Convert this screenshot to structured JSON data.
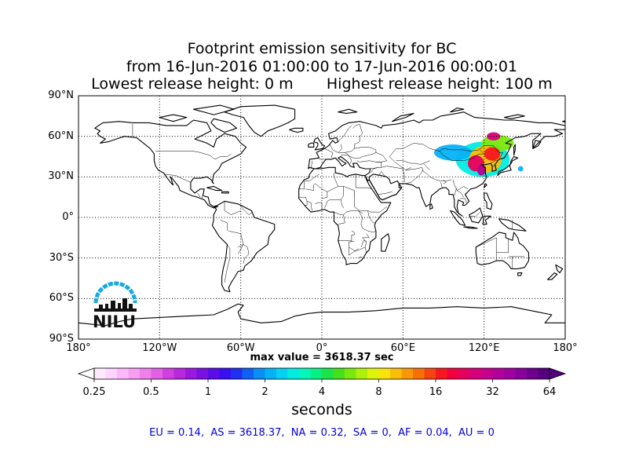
{
  "title": {
    "line1": "Footprint emission sensitivity for BC",
    "line2": "from 16-Jun-2016 01:00:00 to 17-Jun-2016 00:00:01",
    "line3_left": "Lowest release height: 0 m",
    "line3_right": "Highest release height: 100 m"
  },
  "axes": {
    "lat_ticks": [
      "90°N",
      "60°N",
      "30°N",
      "0°",
      "30°S",
      "60°S",
      "90°S"
    ],
    "lon_ticks": [
      "180°",
      "120°W",
      "60°W",
      "0°",
      "60°E",
      "120°E",
      "180°"
    ],
    "lat_range": [
      -90,
      90
    ],
    "lon_range": [
      -180,
      180
    ],
    "grid": "dotted"
  },
  "max_value": "max value = 3618.37 sec",
  "colorbar": {
    "tick_labels": [
      "0.25",
      "0.5",
      "1",
      "2",
      "4",
      "8",
      "16",
      "32",
      "64"
    ],
    "units": "seconds",
    "scale": "log2",
    "range": [
      0.25,
      64
    ],
    "colors": [
      "#ffe9ff",
      "#ffd4ff",
      "#fdb8fb",
      "#f79ef2",
      "#ee80ea",
      "#e160e4",
      "#cf40e0",
      "#b828dd",
      "#9a18dd",
      "#7a10e2",
      "#5a0de8",
      "#3a10ee",
      "#2030f2",
      "#1060f4",
      "#0a8ef6",
      "#06b2f6",
      "#04d2f0",
      "#04ece0",
      "#04f6b8",
      "#06f084",
      "#1ae44a",
      "#46e01a",
      "#7ae80e",
      "#aef00a",
      "#dcf40a",
      "#fbe30a",
      "#fbbe08",
      "#f99806",
      "#f77006",
      "#f64410",
      "#f5181e",
      "#f1003e",
      "#e4005e",
      "#d6007c",
      "#c8008e",
      "#b4009a",
      "#9e00a0",
      "#86009a",
      "#6e0090",
      "#560080"
    ]
  },
  "regions_text": "EU = 0.14,  AS = 3618.37,  NA = 0.32,  SA = 0,  AF = 0.04,  AU = 0",
  "logo_text": "NILU",
  "chart_data": {
    "type": "heatmap",
    "title": "Footprint emission sensitivity for BC",
    "units": "seconds",
    "max_value_sec": 3618.37,
    "regions": {
      "EU": 0.14,
      "AS": 3618.37,
      "NA": 0.32,
      "SA": 0,
      "AF": 0.04,
      "AU": 0
    },
    "release_height_m": [
      0,
      100
    ],
    "period": [
      "16-Jun-2016 01:00:00",
      "17-Jun-2016 00:00:01"
    ],
    "footprint_blobs": [
      {
        "lon": 119,
        "lat": 43,
        "rlon": 20,
        "rlat": 13,
        "level": 3
      },
      {
        "lon": 97,
        "lat": 48,
        "rlon": 14,
        "rlat": 6,
        "level": 2
      },
      {
        "lon": 130,
        "lat": 55,
        "rlon": 12,
        "rlat": 6,
        "level": 6
      },
      {
        "lon": 121,
        "lat": 43,
        "rlon": 12,
        "rlat": 10,
        "level": 10
      },
      {
        "lon": 114,
        "lat": 40,
        "rlon": 6,
        "rlat": 6,
        "level": 22
      },
      {
        "lon": 126,
        "lat": 47,
        "rlon": 6,
        "rlat": 5,
        "level": 16
      },
      {
        "lon": 118,
        "lat": 35,
        "rlon": 3,
        "rlat": 4,
        "level": 32
      },
      {
        "lon": 127,
        "lat": 60,
        "rlon": 5,
        "rlat": 3,
        "level": 26
      },
      {
        "lon": 147,
        "lat": 36,
        "rlon": 2,
        "rlat": 2,
        "level": 2
      }
    ]
  }
}
